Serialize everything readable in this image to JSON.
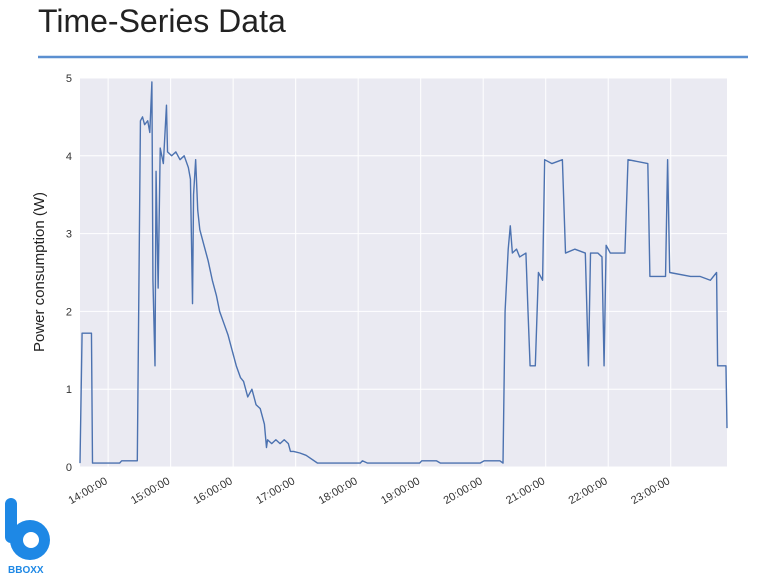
{
  "slide": {
    "title": "Time-Series Data",
    "logo_text": "BBOXX"
  },
  "chart_data": {
    "type": "line",
    "ylabel": "Power consumption (W)",
    "color": "#4c72b0",
    "grid": true,
    "xlim": [
      "13:33:00",
      "23:54:00"
    ],
    "xticks": [
      "14:00:00",
      "15:00:00",
      "16:00:00",
      "17:00:00",
      "18:00:00",
      "19:00:00",
      "20:00:00",
      "21:00:00",
      "22:00:00",
      "23:00:00"
    ],
    "ylim": [
      0,
      5
    ],
    "yticks": [
      0,
      1,
      2,
      3,
      4,
      5
    ],
    "x": [
      "13:33:00",
      "13:35:00",
      "13:44:00",
      "13:45:00",
      "14:11:00",
      "14:13:00",
      "14:28:00",
      "14:31:00",
      "14:33:00",
      "14:35:00",
      "14:38:00",
      "14:40:00",
      "14:42:00",
      "14:43:00",
      "14:45:00",
      "14:46:00",
      "14:48:00",
      "14:50:00",
      "14:53:00",
      "14:56:00",
      "14:57:00",
      "15:01:00",
      "15:05:00",
      "15:09:00",
      "15:13:00",
      "15:17:00",
      "15:19:00",
      "15:21:00",
      "15:22:00",
      "15:24:00",
      "15:26:00",
      "15:28:00",
      "15:32:00",
      "15:36:00",
      "15:40:00",
      "15:44:00",
      "15:47:00",
      "15:51:00",
      "15:55:00",
      "15:59:00",
      "16:03:00",
      "16:07:00",
      "16:10:00",
      "16:14:00",
      "16:18:00",
      "16:22:00",
      "16:26:00",
      "16:30:00",
      "16:32:00",
      "16:33:00",
      "16:37:00",
      "16:41:00",
      "16:45:00",
      "16:49:00",
      "16:53:00",
      "16:55:00",
      "16:58:00",
      "17:04:00",
      "17:10:00",
      "17:21:00",
      "18:02:00",
      "18:04:00",
      "18:09:00",
      "18:59:00",
      "19:01:00",
      "19:15:00",
      "19:19:00",
      "19:57:00",
      "20:01:00",
      "20:16:00",
      "20:19:00",
      "20:21:00",
      "20:24:00",
      "20:26:00",
      "20:28:00",
      "20:32:00",
      "20:35:00",
      "20:41:00",
      "20:43:00",
      "20:45:00",
      "20:50:00",
      "20:53:00",
      "20:57:00",
      "20:59:00",
      "21:06:00",
      "21:16:00",
      "21:19:00",
      "21:28:00",
      "21:38:00",
      "21:41:00",
      "21:43:00",
      "21:50:00",
      "21:54:00",
      "21:56:00",
      "21:58:00",
      "22:02:00",
      "22:16:00",
      "22:19:00",
      "22:38:00",
      "22:40:00",
      "22:55:00",
      "22:57:00",
      "22:59:00",
      "23:19:00",
      "23:28:00",
      "23:38:00",
      "23:44:00",
      "23:45:00",
      "23:53:00",
      "23:54:00"
    ],
    "values": [
      0.05,
      1.72,
      1.72,
      0.05,
      0.05,
      0.08,
      0.08,
      4.45,
      4.5,
      4.4,
      4.45,
      4.3,
      4.95,
      2.4,
      1.3,
      3.8,
      2.3,
      4.1,
      3.9,
      4.65,
      4.05,
      4.0,
      4.05,
      3.95,
      4.0,
      3.85,
      3.7,
      2.1,
      3.5,
      3.95,
      3.3,
      3.05,
      2.85,
      2.65,
      2.4,
      2.2,
      2.0,
      1.85,
      1.7,
      1.5,
      1.3,
      1.15,
      1.1,
      0.9,
      1.0,
      0.8,
      0.75,
      0.55,
      0.25,
      0.35,
      0.3,
      0.35,
      0.3,
      0.35,
      0.3,
      0.2,
      0.2,
      0.18,
      0.15,
      0.05,
      0.05,
      0.08,
      0.05,
      0.05,
      0.08,
      0.08,
      0.05,
      0.05,
      0.08,
      0.08,
      0.05,
      2.0,
      2.8,
      3.1,
      2.75,
      2.8,
      2.7,
      2.75,
      2.0,
      1.3,
      1.3,
      2.5,
      2.4,
      3.95,
      3.9,
      3.95,
      2.75,
      2.8,
      2.75,
      1.3,
      2.75,
      2.75,
      2.7,
      1.3,
      2.85,
      2.75,
      2.75,
      3.95,
      3.9,
      2.45,
      2.45,
      3.95,
      2.5,
      2.45,
      2.45,
      2.4,
      2.5,
      1.3,
      1.3,
      0.5
    ]
  }
}
